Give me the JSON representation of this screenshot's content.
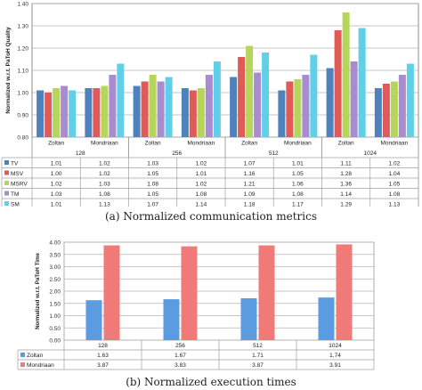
{
  "chart_data": [
    {
      "type": "bar",
      "caption": "(a) Normalized communication metrics",
      "ylabel": "Normalized w.r.t. PaToH Quality",
      "ylim": [
        0.8,
        1.4
      ],
      "yticks": [
        "0.80",
        "0.90",
        "1.00",
        "1.10",
        "1.20",
        "1.30",
        "1.40"
      ],
      "grid": true,
      "groups": [
        "128",
        "256",
        "512",
        "1024"
      ],
      "tools": [
        "Zoltan",
        "Mondriaan"
      ],
      "categories": [
        "Zoltan",
        "Mondriaan",
        "Zoltan",
        "Mondriaan",
        "Zoltan",
        "Mondriaan",
        "Zoltan",
        "Mondriaan"
      ],
      "series": [
        {
          "name": "TV",
          "color": "#4f81bd",
          "values": [
            1.01,
            1.02,
            1.03,
            1.02,
            1.07,
            1.01,
            1.11,
            1.02
          ],
          "labels": [
            "1.01",
            "1.02",
            "1.03",
            "1.02",
            "1.07",
            "1.01",
            "1.11",
            "1.02"
          ]
        },
        {
          "name": "MSV",
          "color": "#e05a57",
          "values": [
            1.0,
            1.02,
            1.05,
            1.01,
            1.16,
            1.05,
            1.28,
            1.04
          ],
          "labels": [
            "1.00",
            "1.02",
            "1.05",
            "1.01",
            "1.16",
            "1.05",
            "1.28",
            "1.04"
          ]
        },
        {
          "name": "MSRV",
          "color": "#b5d65a",
          "values": [
            1.02,
            1.03,
            1.08,
            1.02,
            1.21,
            1.06,
            1.36,
            1.05
          ],
          "labels": [
            "1.02",
            "1.03",
            "1.08",
            "1.02",
            "1.21",
            "1.06",
            "1.36",
            "1.05"
          ]
        },
        {
          "name": "TM",
          "color": "#a98bd0",
          "values": [
            1.03,
            1.08,
            1.05,
            1.08,
            1.09,
            1.08,
            1.14,
            1.08
          ],
          "labels": [
            "1.03",
            "1.08",
            "1.05",
            "1.08",
            "1.09",
            "1.08",
            "1.14",
            "1.08"
          ]
        },
        {
          "name": "SM",
          "color": "#5fd0e8",
          "values": [
            1.01,
            1.13,
            1.07,
            1.14,
            1.18,
            1.17,
            1.29,
            1.13
          ],
          "labels": [
            "1.01",
            "1.13",
            "1.07",
            "1.14",
            "1.18",
            "1.17",
            "1.29",
            "1.13"
          ]
        }
      ]
    },
    {
      "type": "bar",
      "caption": "(b) Normalized execution times",
      "ylabel": "Normalized w.r.t. PaToH Time",
      "ylim": [
        0.0,
        4.0
      ],
      "yticks": [
        "0.00",
        "0.50",
        "1.00",
        "1.50",
        "2.00",
        "2.50",
        "3.00",
        "3.50",
        "4.00"
      ],
      "grid": true,
      "categories": [
        "128",
        "256",
        "512",
        "1024"
      ],
      "series": [
        {
          "name": "Zoltan",
          "color": "#5b9be0",
          "values": [
            1.63,
            1.67,
            1.71,
            1.74
          ],
          "labels": [
            "1.63",
            "1.67",
            "1.71",
            "1.74"
          ]
        },
        {
          "name": "Mondriaan",
          "color": "#f07a78",
          "values": [
            3.87,
            3.83,
            3.87,
            3.91
          ],
          "labels": [
            "3.87",
            "3.83",
            "3.87",
            "3.91"
          ]
        }
      ]
    }
  ]
}
